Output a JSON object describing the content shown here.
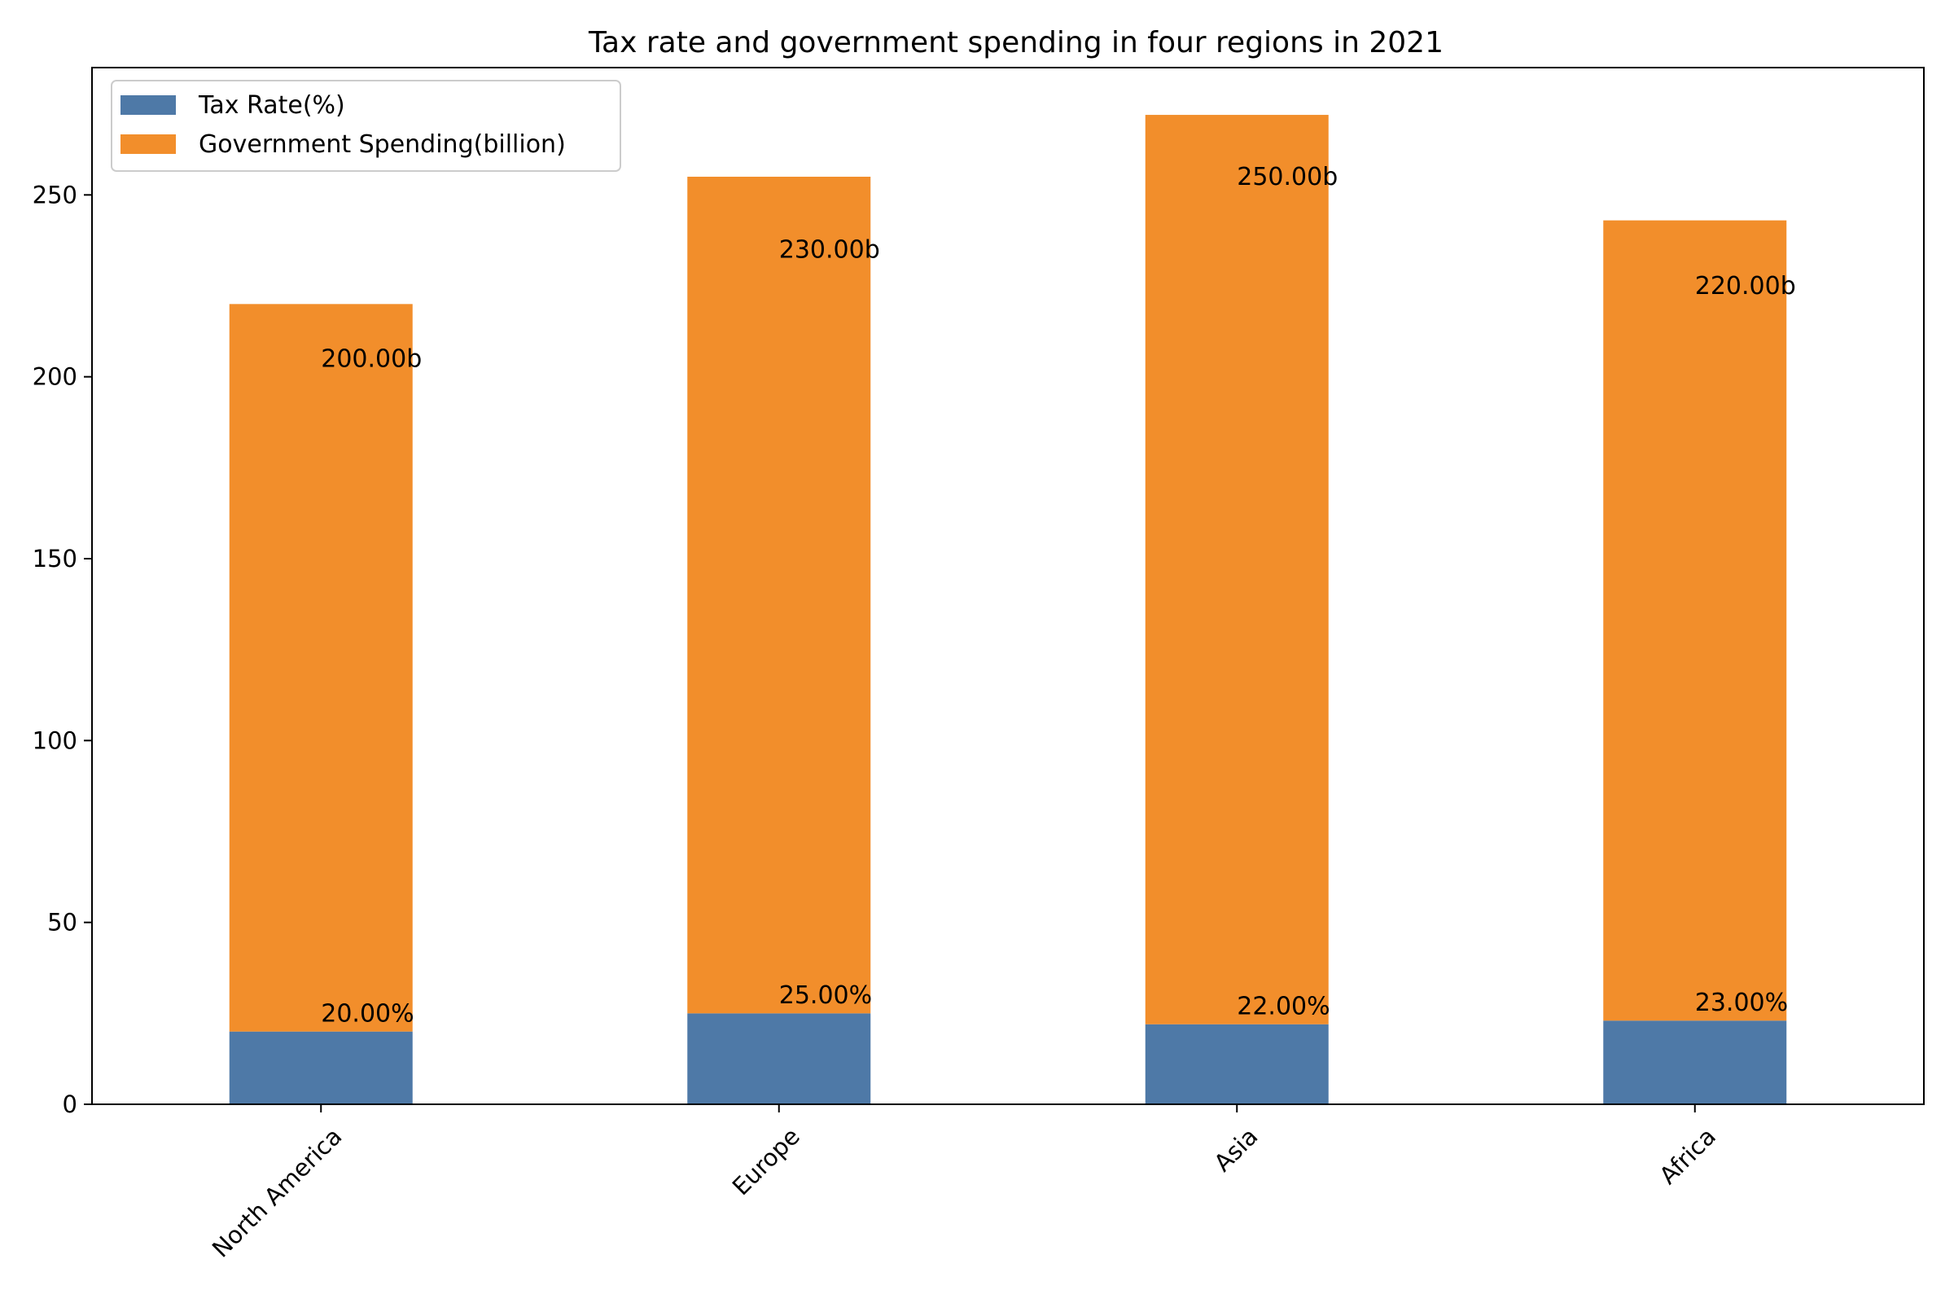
{
  "chart_data": {
    "type": "bar",
    "stacked": true,
    "title": "Tax rate and government spending in four regions in 2021",
    "xlabel": "",
    "ylabel": "",
    "categories": [
      "North America",
      "Europe",
      "Asia",
      "Africa"
    ],
    "series": [
      {
        "name": "Tax Rate(%)",
        "values": [
          20,
          25,
          22,
          23
        ],
        "labels": [
          "20.00%",
          "25.00%",
          "22.00%",
          "23.00%"
        ],
        "color": "#4e79a7"
      },
      {
        "name": "Government Spending(billion)",
        "values": [
          200,
          230,
          250,
          220
        ],
        "labels": [
          "200.00b",
          "230.00b",
          "250.00b",
          "220.00b"
        ],
        "color": "#f28e2b"
      }
    ],
    "ylim": [
      0,
      285
    ],
    "yticks": [
      0,
      50,
      100,
      150,
      200,
      250
    ],
    "grid": false,
    "legend_position": "top-left"
  }
}
